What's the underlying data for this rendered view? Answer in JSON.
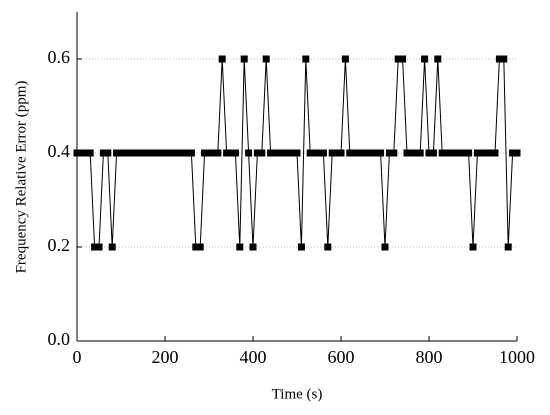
{
  "chart_data": {
    "type": "line",
    "xlabel": "Time (s)",
    "ylabel": "Frequency Relative Error (ppm)",
    "x": [
      0,
      10,
      20,
      30,
      40,
      50,
      60,
      70,
      80,
      90,
      100,
      110,
      120,
      130,
      140,
      150,
      160,
      170,
      180,
      190,
      200,
      210,
      220,
      230,
      240,
      250,
      260,
      270,
      280,
      290,
      300,
      310,
      320,
      330,
      340,
      350,
      360,
      370,
      380,
      390,
      400,
      410,
      420,
      430,
      440,
      450,
      460,
      470,
      480,
      490,
      500,
      510,
      520,
      530,
      540,
      550,
      560,
      570,
      580,
      590,
      600,
      610,
      620,
      630,
      640,
      650,
      660,
      670,
      680,
      690,
      700,
      710,
      720,
      730,
      740,
      750,
      760,
      770,
      780,
      790,
      800,
      810,
      820,
      830,
      840,
      850,
      860,
      870,
      880,
      890,
      900,
      910,
      920,
      930,
      940,
      950,
      960,
      970,
      980,
      990,
      1000
    ],
    "series": [
      {
        "color": "#000000",
        "values": [
          0.4,
          0.4,
          0.4,
          0.4,
          0.2,
          0.2,
          0.4,
          0.4,
          0.2,
          0.4,
          0.4,
          0.4,
          0.4,
          0.4,
          0.4,
          0.4,
          0.4,
          0.4,
          0.4,
          0.4,
          0.4,
          0.4,
          0.4,
          0.4,
          0.4,
          0.4,
          0.4,
          0.2,
          0.2,
          0.4,
          0.4,
          0.4,
          0.4,
          0.6,
          0.4,
          0.4,
          0.4,
          0.2,
          0.6,
          0.4,
          0.2,
          0.4,
          0.4,
          0.6,
          0.4,
          0.4,
          0.4,
          0.4,
          0.4,
          0.4,
          0.4,
          0.2,
          0.6,
          0.4,
          0.4,
          0.4,
          0.4,
          0.2,
          0.4,
          0.4,
          0.4,
          0.6,
          0.4,
          0.4,
          0.4,
          0.4,
          0.4,
          0.4,
          0.4,
          0.4,
          0.2,
          0.4,
          0.4,
          0.6,
          0.6,
          0.4,
          0.4,
          0.4,
          0.4,
          0.6,
          0.4,
          0.4,
          0.6,
          0.4,
          0.4,
          0.4,
          0.4,
          0.4,
          0.4,
          0.4,
          0.2,
          0.4,
          0.4,
          0.4,
          0.4,
          0.4,
          0.6,
          0.6,
          0.2,
          0.4,
          0.4
        ]
      }
    ],
    "xlim": [
      0,
      1000
    ],
    "xticks": [
      0,
      200,
      400,
      600,
      800,
      1000
    ],
    "ylim": [
      0,
      0.7
    ],
    "yticks": [
      {
        "value": 0,
        "label": "0.0"
      },
      0.2,
      0.4,
      0.6
    ],
    "grid": true
  }
}
